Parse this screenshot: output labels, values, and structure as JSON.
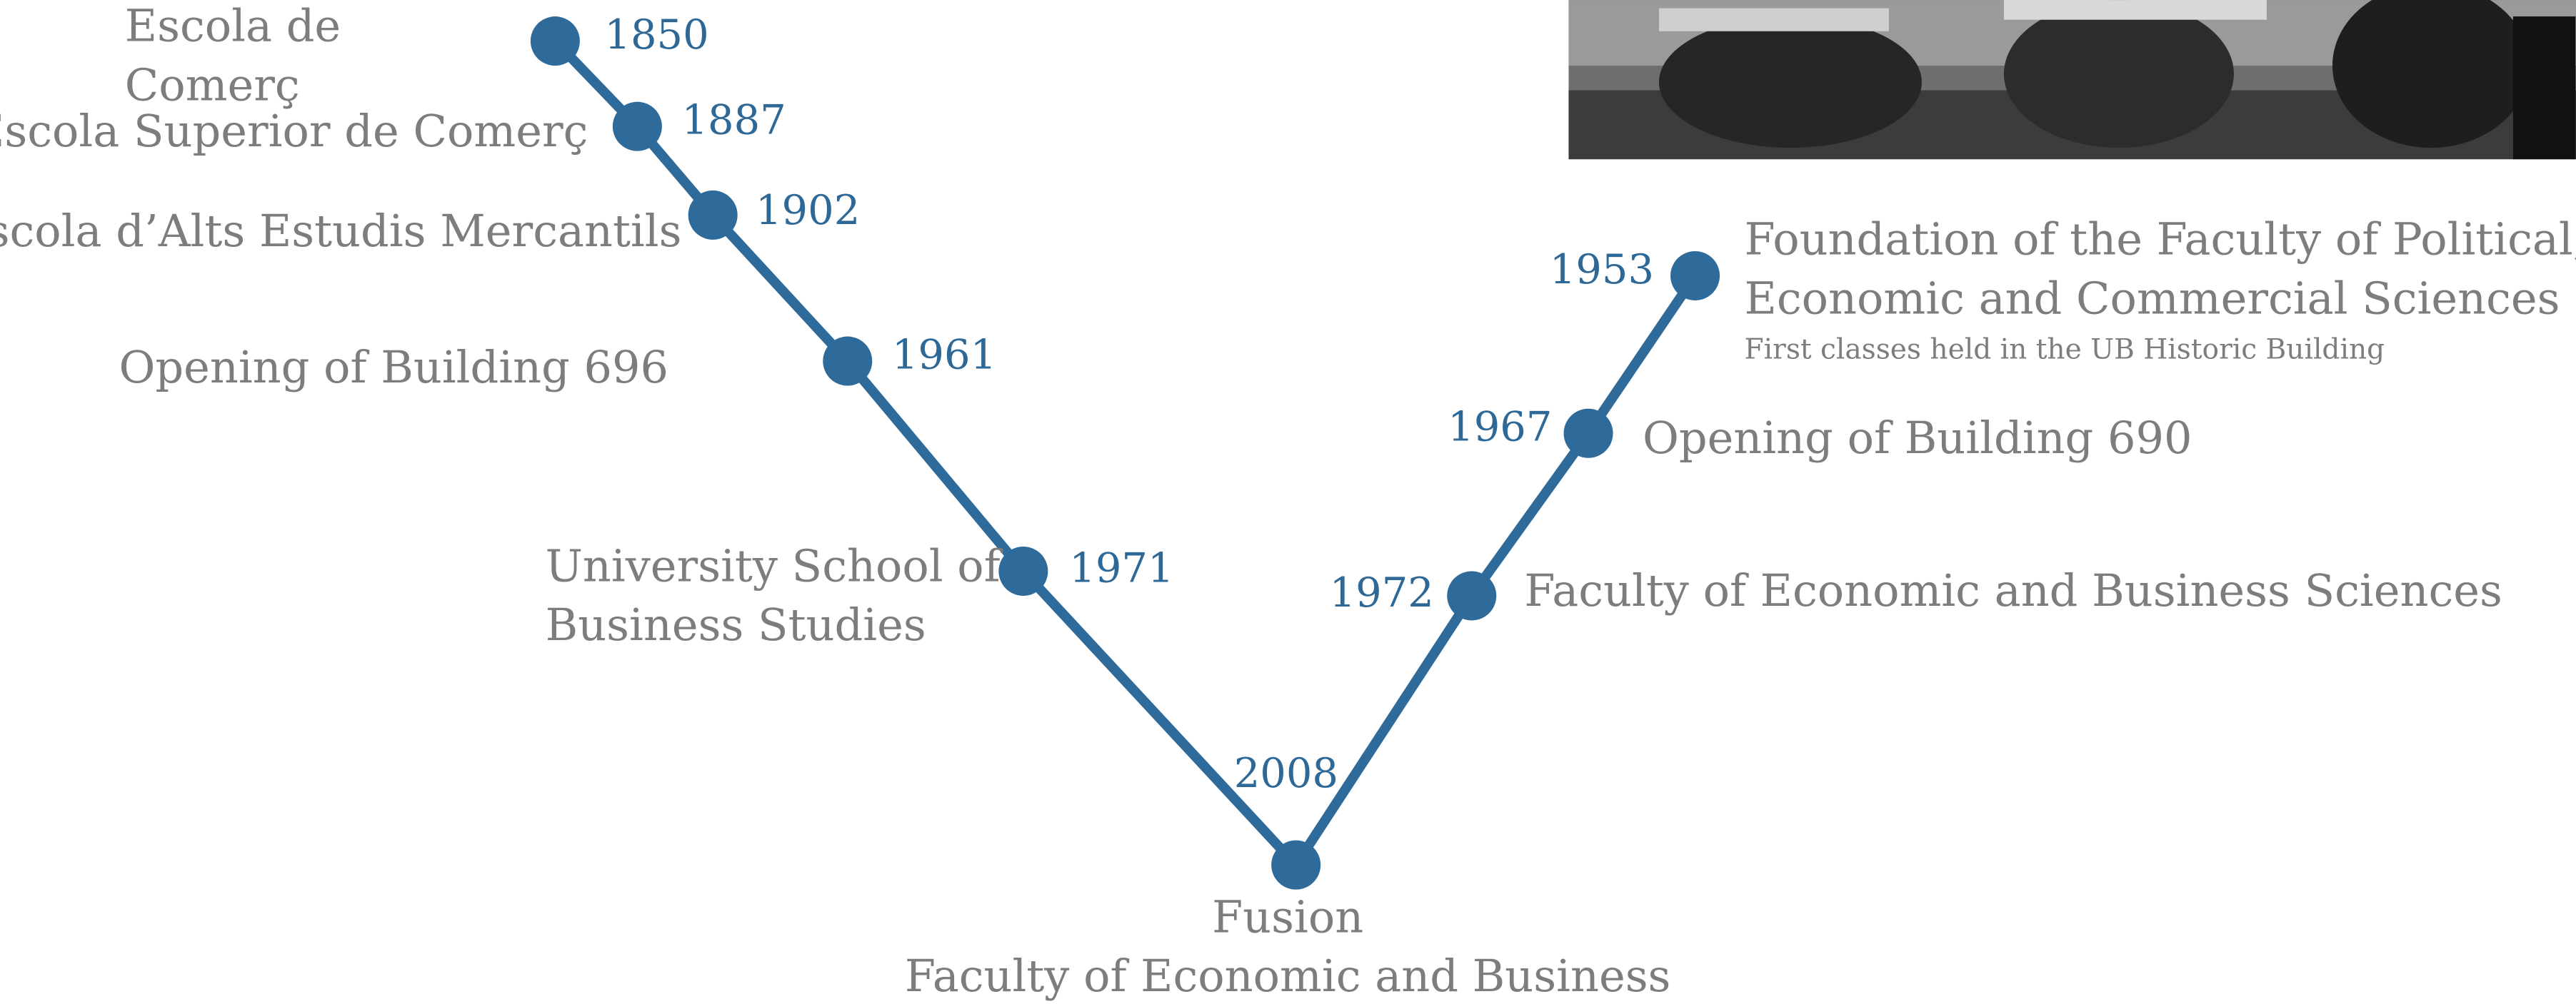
{
  "nodes": [
    {
      "year": "1850",
      "label": [
        "Escola de",
        "Comerç"
      ]
    },
    {
      "year": "1887",
      "label": [
        "Escola Superior de Comerç"
      ]
    },
    {
      "year": "1902",
      "label": [
        "Escola d’Alts Estudis Mercantils"
      ]
    },
    {
      "year": "1961",
      "label": [
        "Opening of Building 696"
      ]
    },
    {
      "year": "1971",
      "label": [
        "University School of",
        "Business Studies"
      ]
    },
    {
      "year": "2008",
      "label": [
        "Fusion",
        "Faculty of Economic and Business"
      ]
    },
    {
      "year": "1972",
      "label": [
        "Faculty of Economic and Business Sciences"
      ]
    },
    {
      "year": "1967",
      "label": [
        "Opening of Building 690"
      ]
    },
    {
      "year": "1953",
      "label": [
        "Foundation of the Faculty of Political,",
        "Economic and Commercial Sciences"
      ],
      "note": "First classes held in the UB Historic Building"
    }
  ]
}
